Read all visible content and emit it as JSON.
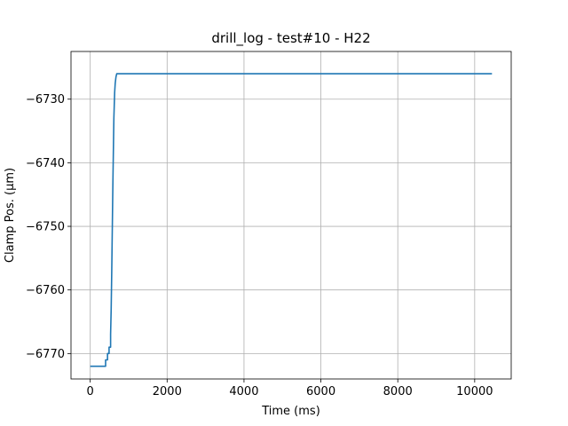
{
  "chart_data": {
    "type": "line",
    "title": "drill_log - test#10 - H22",
    "xlabel": "Time (ms)",
    "ylabel": "Clamp Pos. (µm)",
    "xlim": [
      -500,
      10950
    ],
    "ylim": [
      -6774.0,
      -6722.5
    ],
    "grid": true,
    "x_ticks": [
      0,
      2000,
      4000,
      6000,
      8000,
      10000
    ],
    "x_tick_labels": [
      "0",
      "2000",
      "4000",
      "6000",
      "8000",
      "10000"
    ],
    "y_ticks": [
      -6770,
      -6760,
      -6750,
      -6740,
      -6730
    ],
    "y_tick_labels": [
      "−6770",
      "−6760",
      "−6750",
      "−6740",
      "−6730"
    ],
    "colors": {
      "line": "#1f77b4",
      "grid": "#b0b0b0",
      "axes": "#000000"
    },
    "series": [
      {
        "name": "Clamp Pos.",
        "x": [
          0,
          400,
          400,
          450,
          450,
          490,
          490,
          530,
          530,
          545,
          560,
          575,
          590,
          605,
          615,
          625,
          635,
          645,
          650,
          660,
          670,
          690,
          700,
          10450
        ],
        "y": [
          -6772,
          -6772,
          -6771,
          -6771,
          -6770,
          -6770,
          -6769,
          -6769,
          -6767,
          -6763,
          -6757,
          -6750,
          -6743,
          -6737,
          -6733,
          -6731,
          -6729,
          -6728,
          -6727.5,
          -6727,
          -6726.5,
          -6726,
          -6726,
          -6726
        ]
      }
    ]
  }
}
